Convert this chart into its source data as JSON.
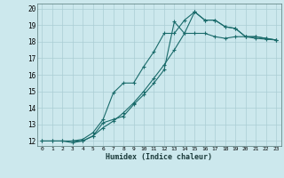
{
  "title": "",
  "xlabel": "Humidex (Indice chaleur)",
  "background_color": "#cce8ed",
  "grid_color": "#aacdd4",
  "line_color": "#1a6b6b",
  "xlim": [
    -0.5,
    23.5
  ],
  "ylim": [
    11.7,
    20.3
  ],
  "xticks": [
    0,
    1,
    2,
    3,
    4,
    5,
    6,
    7,
    8,
    9,
    10,
    11,
    12,
    13,
    14,
    15,
    16,
    17,
    18,
    19,
    20,
    21,
    22,
    23
  ],
  "yticks": [
    12,
    13,
    14,
    15,
    16,
    17,
    18,
    19,
    20
  ],
  "line1_x": [
    0,
    1,
    2,
    3,
    4,
    5,
    6,
    7,
    8,
    9,
    10,
    11,
    12,
    13,
    14,
    15,
    16,
    17,
    18,
    19,
    20,
    21,
    22,
    23
  ],
  "line1_y": [
    12,
    12,
    12,
    12,
    12,
    12.3,
    12.8,
    13.2,
    13.7,
    14.3,
    15.0,
    15.8,
    16.6,
    17.5,
    18.5,
    18.5,
    18.5,
    18.3,
    18.2,
    18.3,
    18.3,
    18.2,
    18.15,
    18.1
  ],
  "line2_x": [
    0,
    1,
    2,
    3,
    4,
    5,
    6,
    7,
    8,
    9,
    10,
    11,
    12,
    13,
    14,
    15,
    16,
    17,
    18,
    19,
    20,
    21,
    22,
    23
  ],
  "line2_y": [
    12,
    12,
    12,
    11.9,
    12.0,
    12.3,
    13.1,
    13.3,
    13.5,
    14.2,
    14.8,
    15.5,
    16.3,
    19.2,
    18.5,
    19.8,
    19.3,
    19.3,
    18.9,
    18.8,
    18.3,
    18.3,
    18.2,
    18.1
  ],
  "line3_x": [
    3,
    4,
    5,
    6,
    7,
    8,
    9,
    10,
    11,
    12,
    13,
    14,
    15,
    16,
    17,
    18,
    19,
    20,
    21,
    22,
    23
  ],
  "line3_y": [
    12,
    12.1,
    12.5,
    13.3,
    14.9,
    15.5,
    15.5,
    16.5,
    17.4,
    18.5,
    18.5,
    19.3,
    19.8,
    19.3,
    19.3,
    18.9,
    18.8,
    18.3,
    18.3,
    18.2,
    18.1
  ]
}
